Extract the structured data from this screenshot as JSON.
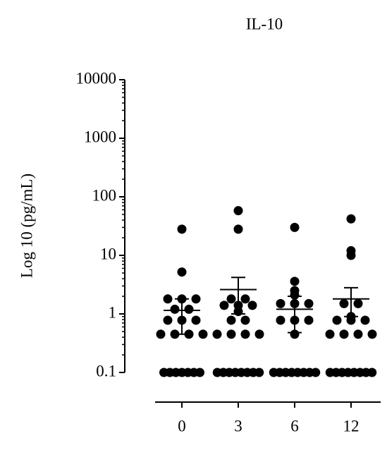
{
  "chart_data": {
    "type": "dot",
    "title": "IL-10",
    "y_label": "Log 10 (pg/mL)",
    "categories": [
      "0",
      "3",
      "6",
      "12"
    ],
    "values": [
      [
        28,
        5.2,
        1.8,
        1.8,
        1.8,
        1.2,
        1.2,
        0.78,
        0.78,
        0.78,
        0.45,
        0.45,
        0.45,
        0.45,
        0.1,
        0.1,
        0.1,
        0.1,
        0.1,
        0.1,
        0.1
      ],
      [
        58,
        28,
        1.8,
        1.8,
        1.4,
        1.4,
        1.4,
        1.1,
        0.78,
        0.78,
        0.45,
        0.45,
        0.45,
        0.45,
        0.1,
        0.1,
        0.1,
        0.1,
        0.1,
        0.1,
        0.1,
        0.1
      ],
      [
        30,
        3.6,
        2.5,
        2.1,
        1.5,
        1.5,
        1.5,
        0.78,
        0.78,
        0.78,
        0.45,
        0.1,
        0.1,
        0.1,
        0.1,
        0.1,
        0.1,
        0.1,
        0.1
      ],
      [
        42,
        12,
        10,
        1.5,
        1.5,
        0.9,
        0.78,
        0.78,
        0.78,
        0.45,
        0.45,
        0.45,
        0.45,
        0.1,
        0.1,
        0.1,
        0.1,
        0.1,
        0.1,
        0.1,
        0.1
      ]
    ],
    "means": [
      1.15,
      2.6,
      1.2,
      1.8
    ],
    "err_upper": [
      1.8,
      4.2,
      2.0,
      2.8
    ],
    "err_lower": [
      0.45,
      1.0,
      0.48,
      0.9
    ],
    "color": "#000000",
    "log_scale": true,
    "ylim": [
      0.1,
      10000
    ],
    "yticks": [
      0.1,
      1,
      10,
      100,
      1000,
      10000
    ]
  }
}
